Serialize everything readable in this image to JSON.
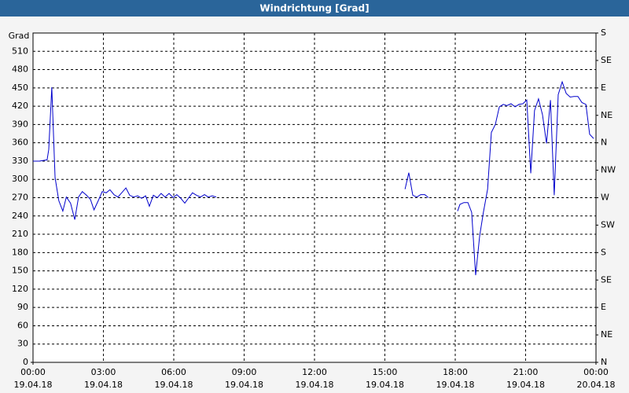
{
  "chart_data": {
    "type": "line",
    "title": "Windrichtung [Grad]",
    "y_label": "Grad",
    "xlim": [
      0,
      24
    ],
    "ylim": [
      0,
      540
    ],
    "y2lim": [
      0,
      540
    ],
    "xticks": [
      {
        "value": 0,
        "label": "00:00",
        "date": "19.04.18"
      },
      {
        "value": 3,
        "label": "03:00",
        "date": "19.04.18"
      },
      {
        "value": 6,
        "label": "06:00",
        "date": "19.04.18"
      },
      {
        "value": 9,
        "label": "09:00",
        "date": "19.04.18"
      },
      {
        "value": 12,
        "label": "12:00",
        "date": "19.04.18"
      },
      {
        "value": 15,
        "label": "15:00",
        "date": "19.04.18"
      },
      {
        "value": 18,
        "label": "18:00",
        "date": "19.04.18"
      },
      {
        "value": 21,
        "label": "21:00",
        "date": "19.04.18"
      },
      {
        "value": 24,
        "label": "00:00",
        "date": "20.04.18"
      }
    ],
    "yticks": [
      0,
      30,
      60,
      90,
      120,
      150,
      180,
      210,
      240,
      270,
      300,
      330,
      360,
      390,
      420,
      450,
      480,
      510
    ],
    "y2ticks": [
      {
        "value": 0,
        "label": "N"
      },
      {
        "value": 45,
        "label": "NE"
      },
      {
        "value": 90,
        "label": "E"
      },
      {
        "value": 135,
        "label": "SE"
      },
      {
        "value": 180,
        "label": "S"
      },
      {
        "value": 225,
        "label": "SW"
      },
      {
        "value": 270,
        "label": "W"
      },
      {
        "value": 315,
        "label": "NW"
      },
      {
        "value": 360,
        "label": "N"
      },
      {
        "value": 405,
        "label": "NE"
      },
      {
        "value": 450,
        "label": "E"
      },
      {
        "value": 495,
        "label": "SE"
      },
      {
        "value": 540,
        "label": "S"
      }
    ],
    "grid": true,
    "x": [
      0,
      0.27,
      0.6,
      0.67,
      0.8,
      0.94,
      1.1,
      1.27,
      1.42,
      1.6,
      1.78,
      1.94,
      2.1,
      2.28,
      2.45,
      2.6,
      2.78,
      2.95,
      3.12,
      3.28,
      3.45,
      3.62,
      3.78,
      3.96,
      4.12,
      4.29,
      4.46,
      4.63,
      4.8,
      4.96,
      5.13,
      5.3,
      5.46,
      5.63,
      5.8,
      5.97,
      6.13,
      6.3,
      6.47,
      6.64,
      6.8,
      6.97,
      7.14,
      7.31,
      7.47,
      7.64,
      7.81,
      10,
      15.86,
      16.02,
      16.19,
      16.36,
      16.53,
      16.7,
      16.86,
      17.5,
      18.1,
      18.2,
      18.37,
      18.54,
      18.7,
      18.87,
      19.04,
      19.2,
      19.38,
      19.54,
      19.71,
      19.88,
      20.05,
      20.2,
      20.38,
      20.55,
      20.72,
      20.88,
      21.05,
      21.22,
      21.38,
      21.55,
      21.72,
      21.89,
      22.06,
      22.22,
      22.39,
      22.56,
      22.73,
      22.9,
      23.06,
      23.23,
      23.4,
      23.57,
      23.73,
      23.9
    ],
    "series": [
      {
        "name": "Windrichtung",
        "color": "#0000cc",
        "values": [
          330,
          330,
          332,
          349,
          451,
          303,
          265,
          248,
          271,
          261,
          234,
          271,
          280,
          274,
          267,
          250,
          265,
          280,
          278,
          283,
          275,
          271,
          278,
          286,
          274,
          271,
          273,
          269,
          273,
          256,
          274,
          270,
          277,
          271,
          277,
          270,
          275,
          269,
          261,
          270,
          278,
          274,
          271,
          275,
          271,
          273,
          271,
          null,
          284,
          311,
          274,
          271,
          275,
          275,
          270,
          null,
          248,
          259,
          262,
          262,
          246,
          143,
          207,
          246,
          284,
          377,
          390,
          419,
          423,
          421,
          424,
          419,
          423,
          424,
          430,
          310,
          413,
          432,
          406,
          359,
          430,
          274,
          439,
          460,
          441,
          435,
          436,
          436,
          426,
          423,
          374,
          367
        ]
      }
    ]
  }
}
